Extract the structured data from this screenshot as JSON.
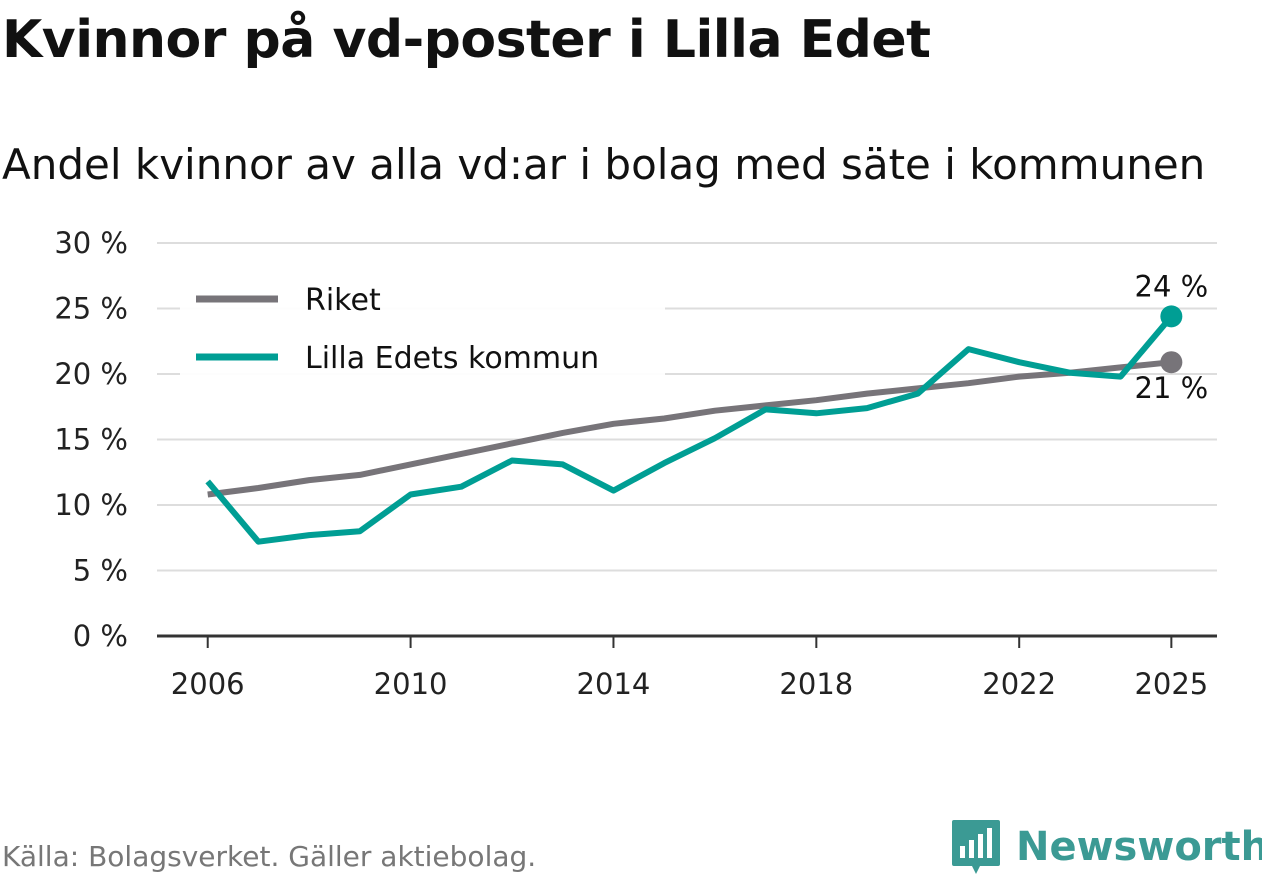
{
  "title": "Kvinnor på vd-poster i Lilla Edet",
  "subtitle": "Andel kvinnor av alla vd:ar i bolag med säte i kommunen",
  "source": "Källa: Bolagsverket. Gäller aktiebolag.",
  "brand": "Newsworthy",
  "colors": {
    "riket": "#777479",
    "kommun": "#009e94",
    "grid": "#dddddd",
    "axis": "#333333",
    "brand": "#3b9a94"
  },
  "chart_data": {
    "type": "line",
    "title": "Kvinnor på vd-poster i Lilla Edet",
    "xlabel": "",
    "ylabel": "",
    "ylim": [
      0,
      30
    ],
    "xlim": [
      2005,
      2025.9
    ],
    "yticks": [
      {
        "value": 0,
        "label": "0 %"
      },
      {
        "value": 5,
        "label": "5 %"
      },
      {
        "value": 10,
        "label": "10 %"
      },
      {
        "value": 15,
        "label": "15 %"
      },
      {
        "value": 20,
        "label": "20 %"
      },
      {
        "value": 25,
        "label": "25 %"
      },
      {
        "value": 30,
        "label": "30 %"
      }
    ],
    "xticks": [
      {
        "value": 2006,
        "label": "2006"
      },
      {
        "value": 2010,
        "label": "2010"
      },
      {
        "value": 2014,
        "label": "2014"
      },
      {
        "value": 2018,
        "label": "2018"
      },
      {
        "value": 2022,
        "label": "2022"
      },
      {
        "value": 2025,
        "label": "2025"
      }
    ],
    "x": [
      2006,
      2007,
      2008,
      2009,
      2010,
      2011,
      2012,
      2013,
      2014,
      2015,
      2016,
      2017,
      2018,
      2019,
      2020,
      2021,
      2022,
      2023,
      2024,
      2025
    ],
    "series": [
      {
        "name": "Riket",
        "color_key": "riket",
        "values": [
          10.8,
          11.3,
          11.9,
          12.3,
          13.1,
          13.9,
          14.7,
          15.5,
          16.2,
          16.6,
          17.2,
          17.6,
          18.0,
          18.5,
          18.9,
          19.3,
          19.8,
          20.1,
          20.5,
          20.9
        ],
        "end_label": "21 %"
      },
      {
        "name": "Lilla Edets kommun",
        "color_key": "kommun",
        "values": [
          11.8,
          7.2,
          7.7,
          8.0,
          10.8,
          11.4,
          13.4,
          13.1,
          11.1,
          13.2,
          15.1,
          17.3,
          17.0,
          17.4,
          18.5,
          21.9,
          20.9,
          20.1,
          19.8,
          24.4
        ],
        "end_label": "24 %"
      }
    ],
    "legend": "top-left",
    "grid": true
  }
}
